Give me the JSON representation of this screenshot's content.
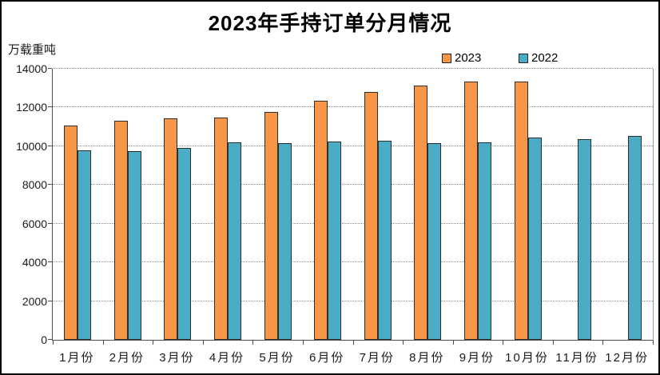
{
  "chart_data": {
    "type": "bar",
    "title": "2023年手持订单分月情况",
    "ylabel": "万载重吨",
    "xlabel": "",
    "categories": [
      "1月份",
      "2月份",
      "3月份",
      "4月份",
      "5月份",
      "6月份",
      "7月份",
      "8月份",
      "9月份",
      "10月份",
      "11月份",
      "12月份"
    ],
    "series": [
      {
        "name": "2023",
        "color": "#F79646",
        "values": [
          11050,
          11300,
          11450,
          11500,
          11750,
          12350,
          12800,
          13150,
          13350,
          13350,
          null,
          null
        ]
      },
      {
        "name": "2022",
        "color": "#4BACC6",
        "values": [
          9800,
          9750,
          9900,
          10200,
          10150,
          10250,
          10300,
          10150,
          10200,
          10450,
          10350,
          10550
        ]
      }
    ],
    "ylim": [
      0,
      14000
    ],
    "yticks": [
      0,
      2000,
      4000,
      6000,
      8000,
      10000,
      12000,
      14000
    ],
    "grid": "horizontal-dotted",
    "legend_position": "top-right",
    "colors": {
      "bar_border": "#2e2e2e",
      "axis": "#4d4d4d",
      "gridline": "#8c8c8c",
      "text": "#111111",
      "background": "#ffffff"
    }
  }
}
